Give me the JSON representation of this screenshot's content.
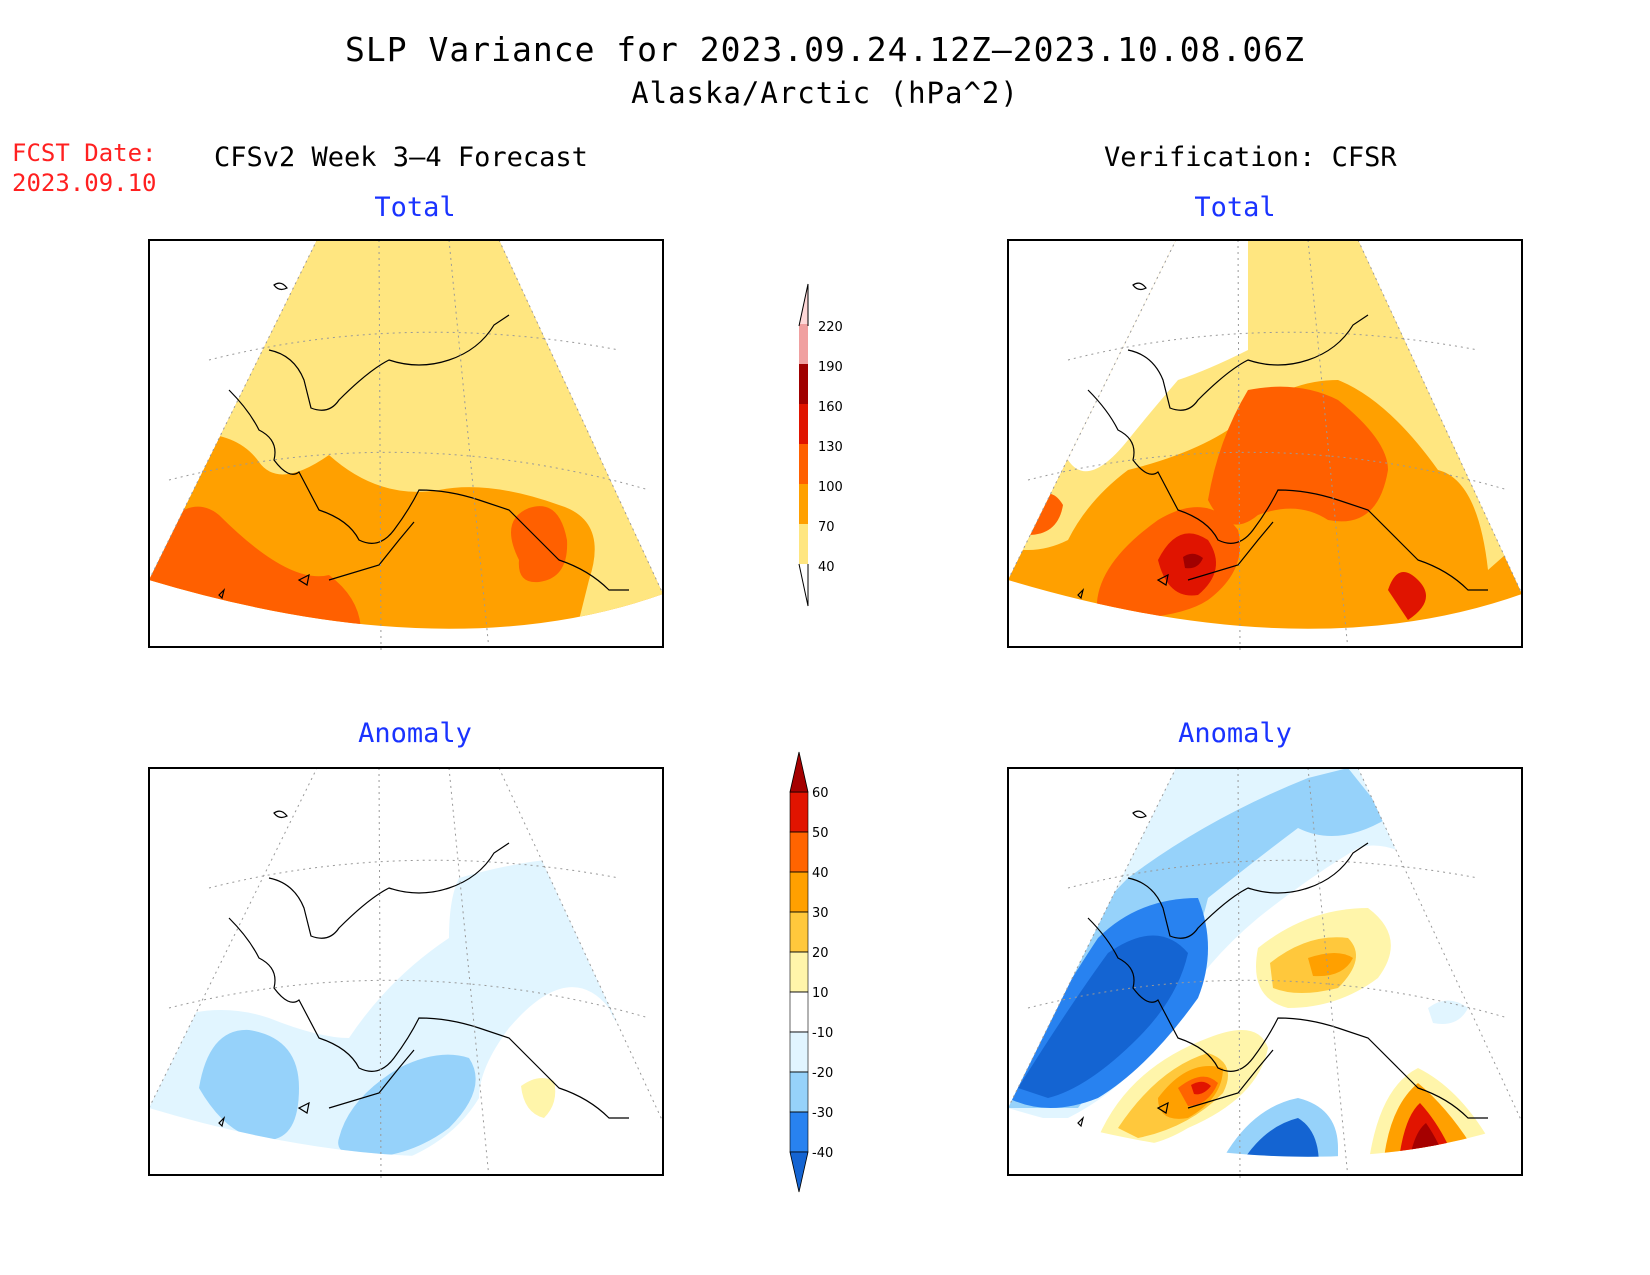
{
  "title": {
    "line1": "SLP Variance for 2023.09.24.12Z–2023.10.08.06Z",
    "line2": "Alaska/Arctic (hPa^2)"
  },
  "fcst_date": {
    "label": "FCST Date:",
    "value": "2023.09.10"
  },
  "columns": {
    "left": "CFSv2 Week 3–4 Forecast",
    "right": "Verification: CFSR"
  },
  "panels": {
    "forecast_total": {
      "title": "Total"
    },
    "verification_total": {
      "title": "Total"
    },
    "forecast_anomaly": {
      "title": "Anomaly"
    },
    "verification_anomaly": {
      "title": "Anomaly"
    }
  },
  "colors": {
    "total_scale": [
      "#ffe680",
      "#ffa000",
      "#ff6000",
      "#e01400",
      "#a00000",
      "#f0a0a0",
      "#ffd8d8"
    ],
    "anomaly_scale": [
      "#1464d2",
      "#2882f0",
      "#96d2fa",
      "#e1f5ff",
      "#ffffff",
      "#fff5aa",
      "#ffc83c",
      "#ffa000",
      "#ff6400",
      "#e11400",
      "#a50000"
    ]
  },
  "colorbars": {
    "total": {
      "labels": [
        "220",
        "190",
        "160",
        "130",
        "100",
        "70",
        "40"
      ]
    },
    "anomaly": {
      "labels": [
        "60",
        "50",
        "40",
        "30",
        "20",
        "10",
        "-10",
        "-20",
        "-30",
        "-40"
      ]
    }
  }
}
